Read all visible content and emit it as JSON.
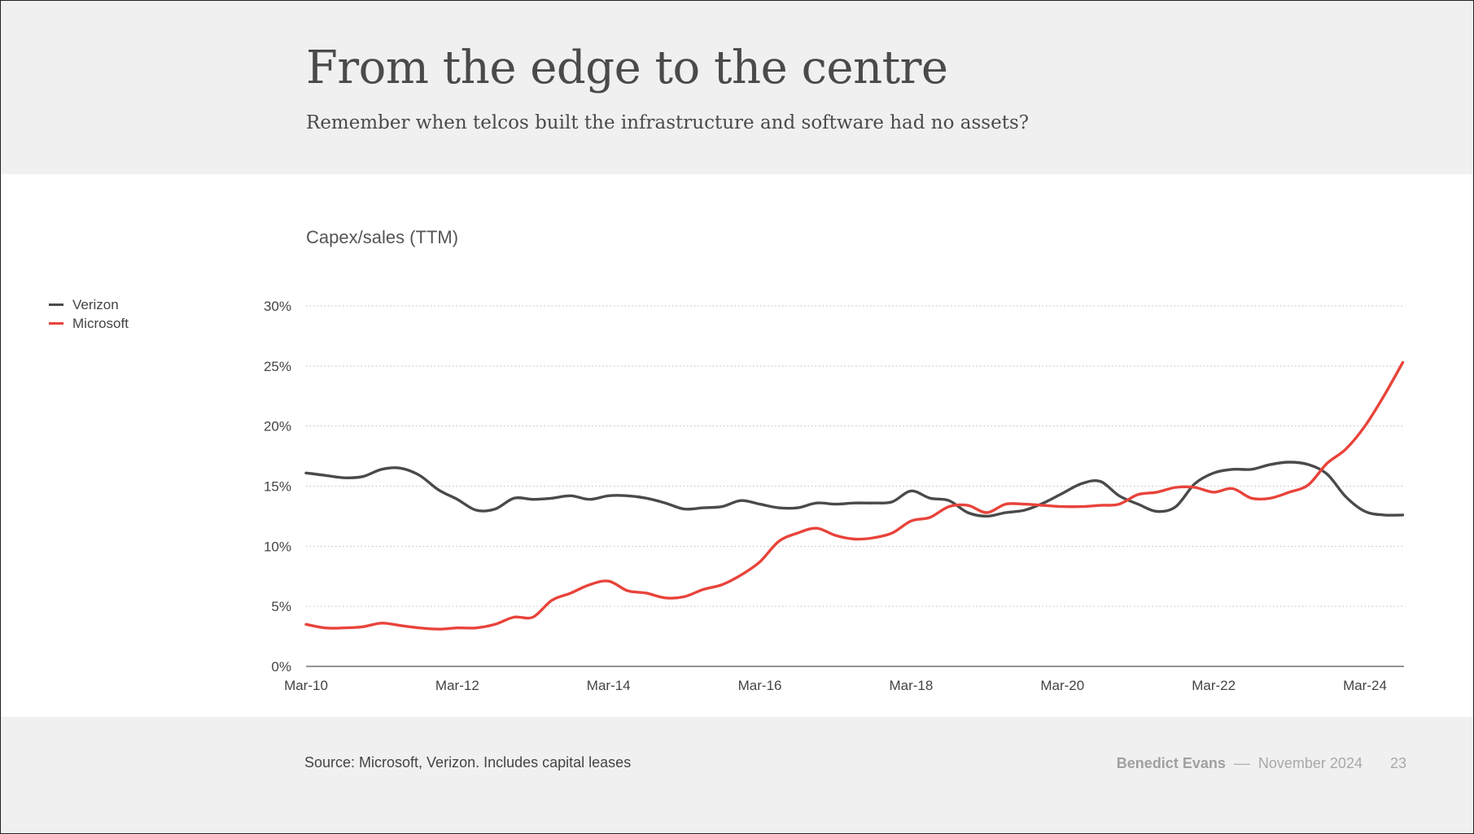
{
  "slide": {
    "title": "From the edge to the centre",
    "subtitle": "Remember when telcos built the infrastructure and software had no assets?",
    "chart_title": "Capex/sales (TTM)",
    "source": "Source: Microsoft, Verizon. Includes capital leases",
    "author": "Benedict Evans",
    "separator": "––",
    "date": "November 2024",
    "page": "23"
  },
  "colors": {
    "header_bg": "#f0f0f0",
    "verizon": "#4a4a4a",
    "microsoft": "#e8433a",
    "grid": "#bdbdbd"
  },
  "chart_data": {
    "type": "line",
    "title": "Capex/sales (TTM)",
    "xlabel": "",
    "ylabel": "",
    "ylim": [
      0,
      30
    ],
    "yticks": [
      0,
      5,
      10,
      15,
      20,
      25,
      30
    ],
    "ytick_labels": [
      "0%",
      "5%",
      "10%",
      "15%",
      "20%",
      "25%",
      "30%"
    ],
    "x_range": [
      "2010-03",
      "2024-12"
    ],
    "xticks": [
      "2010-03",
      "2012-03",
      "2014-03",
      "2016-03",
      "2018-03",
      "2020-03",
      "2022-03",
      "2024-03"
    ],
    "xtick_labels": [
      "Mar-10",
      "Mar-12",
      "Mar-14",
      "Mar-16",
      "Mar-18",
      "Mar-20",
      "Mar-22",
      "Mar-24"
    ],
    "grid": "horizontal dotted",
    "legend_position": "left",
    "series": [
      {
        "name": "Verizon",
        "color": "#4a4a4a",
        "points": [
          [
            "2010-03",
            16.1
          ],
          [
            "2010-06",
            15.9
          ],
          [
            "2010-09",
            15.7
          ],
          [
            "2010-12",
            15.8
          ],
          [
            "2011-03",
            16.4
          ],
          [
            "2011-06",
            16.5
          ],
          [
            "2011-09",
            15.9
          ],
          [
            "2011-12",
            14.7
          ],
          [
            "2012-03",
            13.9
          ],
          [
            "2012-06",
            13.0
          ],
          [
            "2012-09",
            13.1
          ],
          [
            "2012-12",
            14.0
          ],
          [
            "2013-03",
            13.9
          ],
          [
            "2013-06",
            14.0
          ],
          [
            "2013-09",
            14.2
          ],
          [
            "2013-12",
            13.9
          ],
          [
            "2014-03",
            14.2
          ],
          [
            "2014-06",
            14.2
          ],
          [
            "2014-09",
            14.0
          ],
          [
            "2014-12",
            13.6
          ],
          [
            "2015-03",
            13.1
          ],
          [
            "2015-06",
            13.2
          ],
          [
            "2015-09",
            13.3
          ],
          [
            "2015-12",
            13.8
          ],
          [
            "2016-03",
            13.5
          ],
          [
            "2016-06",
            13.2
          ],
          [
            "2016-09",
            13.2
          ],
          [
            "2016-12",
            13.6
          ],
          [
            "2017-03",
            13.5
          ],
          [
            "2017-06",
            13.6
          ],
          [
            "2017-09",
            13.6
          ],
          [
            "2017-12",
            13.7
          ],
          [
            "2018-03",
            14.6
          ],
          [
            "2018-06",
            14.0
          ],
          [
            "2018-09",
            13.8
          ],
          [
            "2018-12",
            12.8
          ],
          [
            "2019-03",
            12.5
          ],
          [
            "2019-06",
            12.8
          ],
          [
            "2019-09",
            13.0
          ],
          [
            "2019-12",
            13.6
          ],
          [
            "2020-03",
            14.4
          ],
          [
            "2020-06",
            15.2
          ],
          [
            "2020-09",
            15.4
          ],
          [
            "2020-12",
            14.2
          ],
          [
            "2021-03",
            13.5
          ],
          [
            "2021-06",
            12.9
          ],
          [
            "2021-09",
            13.3
          ],
          [
            "2021-12",
            15.2
          ],
          [
            "2022-03",
            16.1
          ],
          [
            "2022-06",
            16.4
          ],
          [
            "2022-09",
            16.4
          ],
          [
            "2022-12",
            16.8
          ],
          [
            "2023-03",
            17.0
          ],
          [
            "2023-06",
            16.8
          ],
          [
            "2023-09",
            16.0
          ],
          [
            "2023-12",
            14.1
          ],
          [
            "2024-03",
            12.9
          ],
          [
            "2024-06",
            12.6
          ],
          [
            "2024-09",
            12.6
          ]
        ]
      },
      {
        "name": "Microsoft",
        "color": "#e8433a",
        "points": [
          [
            "2010-03",
            3.5
          ],
          [
            "2010-06",
            3.2
          ],
          [
            "2010-09",
            3.2
          ],
          [
            "2010-12",
            3.3
          ],
          [
            "2011-03",
            3.6
          ],
          [
            "2011-06",
            3.4
          ],
          [
            "2011-09",
            3.2
          ],
          [
            "2011-12",
            3.1
          ],
          [
            "2012-03",
            3.2
          ],
          [
            "2012-06",
            3.2
          ],
          [
            "2012-09",
            3.5
          ],
          [
            "2012-12",
            4.1
          ],
          [
            "2013-03",
            4.1
          ],
          [
            "2013-06",
            5.5
          ],
          [
            "2013-09",
            6.1
          ],
          [
            "2013-12",
            6.8
          ],
          [
            "2014-03",
            7.1
          ],
          [
            "2014-06",
            6.3
          ],
          [
            "2014-09",
            6.1
          ],
          [
            "2014-12",
            5.7
          ],
          [
            "2015-03",
            5.8
          ],
          [
            "2015-06",
            6.4
          ],
          [
            "2015-09",
            6.8
          ],
          [
            "2015-12",
            7.6
          ],
          [
            "2016-03",
            8.7
          ],
          [
            "2016-06",
            10.4
          ],
          [
            "2016-09",
            11.1
          ],
          [
            "2016-12",
            11.5
          ],
          [
            "2017-03",
            10.9
          ],
          [
            "2017-06",
            10.6
          ],
          [
            "2017-09",
            10.7
          ],
          [
            "2017-12",
            11.1
          ],
          [
            "2018-03",
            12.1
          ],
          [
            "2018-06",
            12.4
          ],
          [
            "2018-09",
            13.3
          ],
          [
            "2018-12",
            13.4
          ],
          [
            "2019-03",
            12.8
          ],
          [
            "2019-06",
            13.5
          ],
          [
            "2019-09",
            13.5
          ],
          [
            "2019-12",
            13.4
          ],
          [
            "2020-03",
            13.3
          ],
          [
            "2020-06",
            13.3
          ],
          [
            "2020-09",
            13.4
          ],
          [
            "2020-12",
            13.5
          ],
          [
            "2021-03",
            14.3
          ],
          [
            "2021-06",
            14.5
          ],
          [
            "2021-09",
            14.9
          ],
          [
            "2021-12",
            14.9
          ],
          [
            "2022-03",
            14.5
          ],
          [
            "2022-06",
            14.8
          ],
          [
            "2022-09",
            14.0
          ],
          [
            "2022-12",
            14.0
          ],
          [
            "2023-03",
            14.5
          ],
          [
            "2023-06",
            15.1
          ],
          [
            "2023-09",
            16.9
          ],
          [
            "2023-12",
            18.1
          ],
          [
            "2024-03",
            20.0
          ],
          [
            "2024-06",
            22.5
          ],
          [
            "2024-09",
            25.3
          ]
        ]
      }
    ]
  }
}
